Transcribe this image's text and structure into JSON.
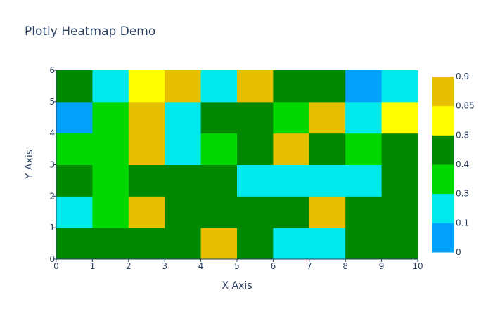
{
  "chart_data": {
    "type": "heatmap",
    "title": "Plotly Heatmap Demo",
    "xlabel": "X Axis",
    "ylabel": "Y Axis",
    "x_edges": [
      0,
      1,
      2,
      3,
      4,
      5,
      6,
      7,
      8,
      9,
      10
    ],
    "y_edges": [
      0,
      1,
      2,
      3,
      4,
      5,
      6
    ],
    "x_tick_labels": [
      "0",
      "1",
      "2",
      "3",
      "4",
      "5",
      "6",
      "7",
      "8",
      "9",
      "10"
    ],
    "y_tick_labels": [
      "0",
      "1",
      "2",
      "3",
      "4",
      "5",
      "6"
    ],
    "xlim": [
      0,
      10
    ],
    "ylim": [
      0,
      6
    ],
    "z": [
      [
        0.6,
        0.6,
        0.6,
        0.6,
        0.87,
        0.6,
        0.2,
        0.2,
        0.6,
        0.6
      ],
      [
        0.2,
        0.35,
        0.87,
        0.6,
        0.6,
        0.6,
        0.6,
        0.87,
        0.6,
        0.6
      ],
      [
        0.6,
        0.35,
        0.6,
        0.6,
        0.6,
        0.2,
        0.2,
        0.2,
        0.2,
        0.6
      ],
      [
        0.35,
        0.35,
        0.87,
        0.2,
        0.35,
        0.6,
        0.87,
        0.6,
        0.35,
        0.6
      ],
      [
        0.05,
        0.35,
        0.87,
        0.2,
        0.6,
        0.6,
        0.35,
        0.87,
        0.2,
        0.82
      ],
      [
        0.6,
        0.2,
        0.82,
        0.87,
        0.2,
        0.87,
        0.6,
        0.6,
        0.05,
        0.2
      ]
    ],
    "colorscale": [
      {
        "from": 0,
        "to": 0.1,
        "color": "#03a1fa"
      },
      {
        "from": 0.1,
        "to": 0.3,
        "color": "#00e9ed"
      },
      {
        "from": 0.3,
        "to": 0.4,
        "color": "#00d800"
      },
      {
        "from": 0.4,
        "to": 0.8,
        "color": "#008900"
      },
      {
        "from": 0.8,
        "to": 0.85,
        "color": "#ffff00"
      },
      {
        "from": 0.85,
        "to": 0.9,
        "color": "#e6c000"
      }
    ],
    "colorbar_tick_labels": [
      "0",
      "0.1",
      "0.3",
      "0.4",
      "0.8",
      "0.85",
      "0.9"
    ],
    "grid": false
  },
  "colors": {
    "text": "#2a3f5f",
    "axis_line": "#2a3f5f",
    "background": "#ffffff"
  }
}
